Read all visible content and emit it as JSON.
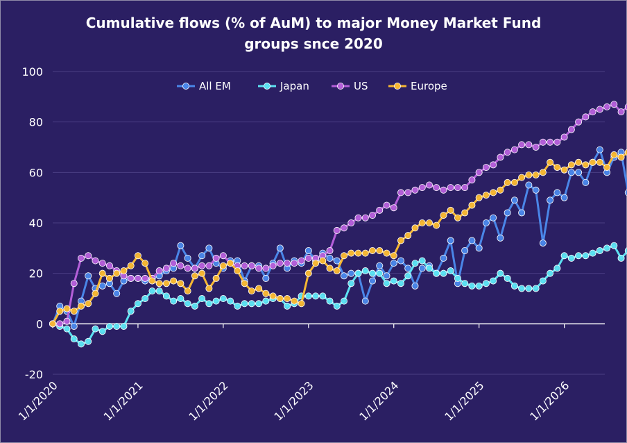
{
  "chart_data": {
    "type": "line",
    "title": "Cumulative flows (% of AuM) to major Money Market Fund groups snce 2020",
    "title_lines": [
      "Cumulative flows (% of AuM) to major Money Market Fund",
      "groups snce 2020"
    ],
    "xlabel": "",
    "ylabel": "",
    "ylim": [
      -20,
      100
    ],
    "y_ticks": [
      -20,
      0,
      20,
      40,
      60,
      80,
      100
    ],
    "x_tick_labels": [
      "1/1/2020",
      "1/1/2021",
      "1/1/2022",
      "1/1/2023",
      "1/1/2024",
      "1/1/2025",
      "1/1/2026"
    ],
    "grid": "horizontal",
    "legend_position": "top",
    "x_start": "2020-01",
    "x_end": "2026-06",
    "series": [
      {
        "name": "All EM",
        "color": "#4a86e8",
        "values": [
          0,
          7,
          5,
          -1,
          9,
          19,
          14,
          15,
          16,
          12,
          17,
          18,
          18,
          17,
          18,
          19,
          21,
          22,
          31,
          26,
          22,
          27,
          30,
          24,
          22,
          25,
          25,
          17,
          23,
          23,
          18,
          24,
          30,
          22,
          25,
          24,
          29,
          25,
          28,
          26,
          25,
          19,
          20,
          20,
          9,
          17,
          23,
          19,
          24,
          25,
          22,
          15,
          22,
          23,
          20,
          26,
          33,
          16,
          29,
          33,
          30,
          40,
          42,
          34,
          44,
          49,
          44,
          55,
          53,
          32,
          49,
          52,
          50,
          60,
          60,
          56,
          64,
          69,
          60,
          66,
          68,
          52,
          68,
          69
        ]
      },
      {
        "name": "Japan",
        "color": "#5ce1f2",
        "values": [
          0,
          -1,
          -2,
          -6,
          -8,
          -7,
          -2,
          -3,
          -1,
          -1,
          -1,
          5,
          8,
          10,
          13,
          13,
          11,
          9,
          10,
          8,
          7,
          10,
          8,
          9,
          10,
          9,
          7,
          8,
          8,
          8,
          9,
          10,
          10,
          7,
          8,
          11,
          11,
          11,
          11,
          9,
          7,
          9,
          16,
          20,
          21,
          20,
          20,
          16,
          17,
          16,
          19,
          24,
          25,
          22,
          20,
          20,
          21,
          18,
          16,
          15,
          15,
          16,
          17,
          20,
          18,
          15,
          14,
          14,
          14,
          17,
          20,
          22,
          27,
          26,
          27,
          27,
          28,
          29,
          30,
          31,
          26,
          29,
          28,
          28
        ]
      },
      {
        "name": "US",
        "color": "#b45fd9",
        "values": [
          0,
          0,
          1,
          16,
          26,
          27,
          25,
          24,
          23,
          21,
          19,
          18,
          18,
          18,
          18,
          21,
          22,
          24,
          23,
          22,
          22,
          23,
          23,
          26,
          27,
          24,
          23,
          23,
          23,
          22,
          22,
          23,
          24,
          24,
          24,
          25,
          26,
          26,
          27,
          29,
          37,
          38,
          40,
          42,
          42,
          43,
          45,
          47,
          46,
          52,
          52,
          53,
          54,
          55,
          54,
          53,
          54,
          54,
          54,
          57,
          60,
          62,
          63,
          66,
          68,
          69,
          71,
          71,
          70,
          72,
          72,
          72,
          74,
          77,
          80,
          82,
          84,
          85,
          86,
          87,
          84,
          86,
          83,
          85
        ]
      },
      {
        "name": "Europe",
        "color": "#f7b733",
        "values": [
          0,
          5,
          6,
          5,
          7,
          8,
          12,
          20,
          18,
          20,
          21,
          23,
          27,
          24,
          17,
          16,
          16,
          17,
          16,
          13,
          19,
          20,
          14,
          18,
          23,
          24,
          21,
          16,
          13,
          14,
          12,
          11,
          10,
          10,
          9,
          8,
          20,
          24,
          25,
          22,
          21,
          27,
          28,
          28,
          28,
          29,
          29,
          28,
          27,
          33,
          35,
          38,
          40,
          40,
          39,
          43,
          45,
          42,
          44,
          47,
          50,
          51,
          52,
          53,
          56,
          56,
          58,
          59,
          59,
          60,
          64,
          62,
          61,
          63,
          64,
          63,
          64,
          64,
          62,
          67,
          66,
          68,
          71,
          71
        ]
      }
    ]
  }
}
